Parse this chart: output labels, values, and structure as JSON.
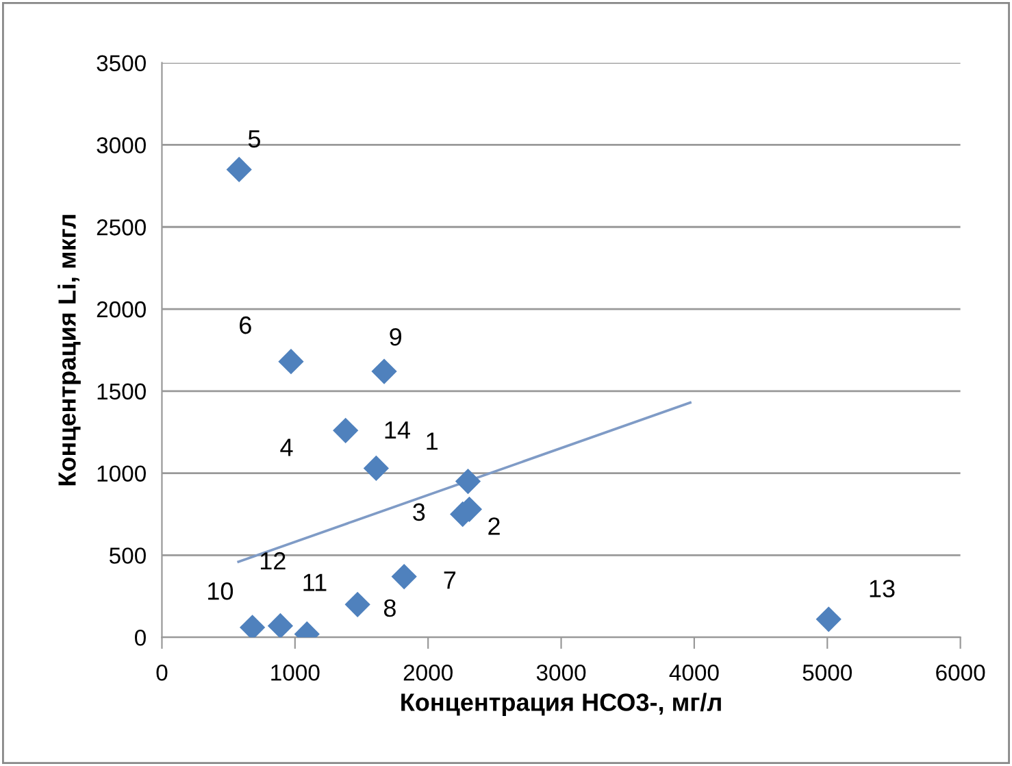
{
  "chart_data": {
    "type": "scatter",
    "xlabel": "Концентрация НСО3-, мг/л",
    "ylabel": "Концентрация Li, мкгл",
    "series": [
      {
        "color": "#4f81bd",
        "marker": "diamond",
        "x": [
          2300,
          2310,
          2260,
          1380,
          580,
          970,
          1820,
          1470,
          1670,
          680,
          1090,
          890,
          5010,
          1610
        ],
        "values": [
          950,
          780,
          750,
          1260,
          2850,
          1680,
          370,
          200,
          1620,
          60,
          20,
          70,
          110,
          1030
        ]
      },
      {
        "type": "line",
        "color": "#7f9bc6",
        "marker": "none",
        "x": [
          575,
          3970
        ],
        "values": [
          460,
          1430
        ]
      }
    ],
    "annotations": [
      {
        "text": "1",
        "x": 2300,
        "y": 950
      },
      {
        "text": "2",
        "x": 2310,
        "y": 780
      },
      {
        "text": "3",
        "x": 2260,
        "y": 750
      },
      {
        "text": "4",
        "x": 1380,
        "y": 1260
      },
      {
        "text": "5",
        "x": 580,
        "y": 2850
      },
      {
        "text": "6",
        "x": 970,
        "y": 1680
      },
      {
        "text": "7",
        "x": 1820,
        "y": 370
      },
      {
        "text": "8",
        "x": 1470,
        "y": 200
      },
      {
        "text": "9",
        "x": 1670,
        "y": 1620
      },
      {
        "text": "10",
        "x": 680,
        "y": 60
      },
      {
        "text": "11",
        "x": 1090,
        "y": 20
      },
      {
        "text": "12",
        "x": 890,
        "y": 70
      },
      {
        "text": "13",
        "x": 5010,
        "y": 110
      },
      {
        "text": "14",
        "x": 1610,
        "y": 1030
      }
    ],
    "xlim": [
      0,
      6000
    ],
    "xticks": [
      0,
      1000,
      2000,
      3000,
      4000,
      5000,
      6000
    ],
    "ylim": [
      0,
      3500
    ],
    "yticks": [
      0,
      500,
      1000,
      1500,
      2000,
      2500,
      3000,
      3500
    ],
    "grid": "y",
    "legend": false
  }
}
